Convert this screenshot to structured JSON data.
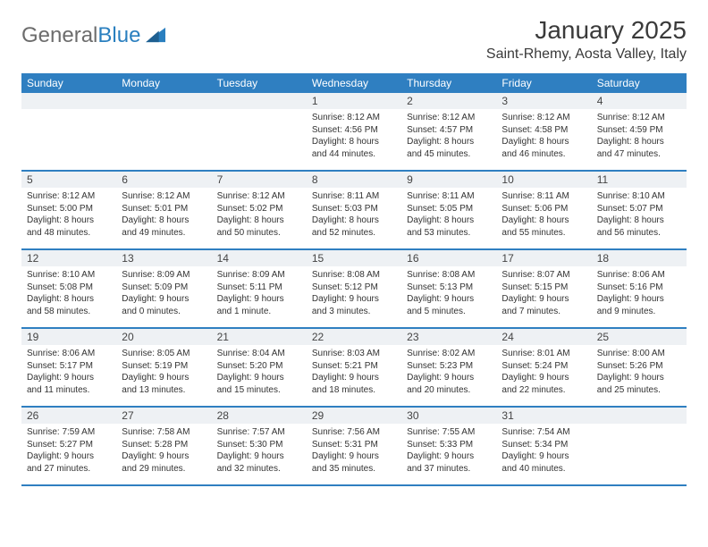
{
  "logo": {
    "text_part1": "General",
    "text_part2": "Blue",
    "icon_color": "#2a7fbf",
    "text_color_gray": "#6c6c6c"
  },
  "header": {
    "month_title": "January 2025",
    "location": "Saint-Rhemy, Aosta Valley, Italy"
  },
  "colors": {
    "header_bg": "#2f7fc1",
    "header_text": "#ffffff",
    "daynum_bg": "#eef1f4",
    "border": "#2f7fc1",
    "body_text": "#333333"
  },
  "day_labels": [
    "Sunday",
    "Monday",
    "Tuesday",
    "Wednesday",
    "Thursday",
    "Friday",
    "Saturday"
  ],
  "weeks": [
    [
      {
        "empty": true
      },
      {
        "empty": true
      },
      {
        "empty": true
      },
      {
        "day": "1",
        "sunrise": "Sunrise: 8:12 AM",
        "sunset": "Sunset: 4:56 PM",
        "daylight1": "Daylight: 8 hours",
        "daylight2": "and 44 minutes."
      },
      {
        "day": "2",
        "sunrise": "Sunrise: 8:12 AM",
        "sunset": "Sunset: 4:57 PM",
        "daylight1": "Daylight: 8 hours",
        "daylight2": "and 45 minutes."
      },
      {
        "day": "3",
        "sunrise": "Sunrise: 8:12 AM",
        "sunset": "Sunset: 4:58 PM",
        "daylight1": "Daylight: 8 hours",
        "daylight2": "and 46 minutes."
      },
      {
        "day": "4",
        "sunrise": "Sunrise: 8:12 AM",
        "sunset": "Sunset: 4:59 PM",
        "daylight1": "Daylight: 8 hours",
        "daylight2": "and 47 minutes."
      }
    ],
    [
      {
        "day": "5",
        "sunrise": "Sunrise: 8:12 AM",
        "sunset": "Sunset: 5:00 PM",
        "daylight1": "Daylight: 8 hours",
        "daylight2": "and 48 minutes."
      },
      {
        "day": "6",
        "sunrise": "Sunrise: 8:12 AM",
        "sunset": "Sunset: 5:01 PM",
        "daylight1": "Daylight: 8 hours",
        "daylight2": "and 49 minutes."
      },
      {
        "day": "7",
        "sunrise": "Sunrise: 8:12 AM",
        "sunset": "Sunset: 5:02 PM",
        "daylight1": "Daylight: 8 hours",
        "daylight2": "and 50 minutes."
      },
      {
        "day": "8",
        "sunrise": "Sunrise: 8:11 AM",
        "sunset": "Sunset: 5:03 PM",
        "daylight1": "Daylight: 8 hours",
        "daylight2": "and 52 minutes."
      },
      {
        "day": "9",
        "sunrise": "Sunrise: 8:11 AM",
        "sunset": "Sunset: 5:05 PM",
        "daylight1": "Daylight: 8 hours",
        "daylight2": "and 53 minutes."
      },
      {
        "day": "10",
        "sunrise": "Sunrise: 8:11 AM",
        "sunset": "Sunset: 5:06 PM",
        "daylight1": "Daylight: 8 hours",
        "daylight2": "and 55 minutes."
      },
      {
        "day": "11",
        "sunrise": "Sunrise: 8:10 AM",
        "sunset": "Sunset: 5:07 PM",
        "daylight1": "Daylight: 8 hours",
        "daylight2": "and 56 minutes."
      }
    ],
    [
      {
        "day": "12",
        "sunrise": "Sunrise: 8:10 AM",
        "sunset": "Sunset: 5:08 PM",
        "daylight1": "Daylight: 8 hours",
        "daylight2": "and 58 minutes."
      },
      {
        "day": "13",
        "sunrise": "Sunrise: 8:09 AM",
        "sunset": "Sunset: 5:09 PM",
        "daylight1": "Daylight: 9 hours",
        "daylight2": "and 0 minutes."
      },
      {
        "day": "14",
        "sunrise": "Sunrise: 8:09 AM",
        "sunset": "Sunset: 5:11 PM",
        "daylight1": "Daylight: 9 hours",
        "daylight2": "and 1 minute."
      },
      {
        "day": "15",
        "sunrise": "Sunrise: 8:08 AM",
        "sunset": "Sunset: 5:12 PM",
        "daylight1": "Daylight: 9 hours",
        "daylight2": "and 3 minutes."
      },
      {
        "day": "16",
        "sunrise": "Sunrise: 8:08 AM",
        "sunset": "Sunset: 5:13 PM",
        "daylight1": "Daylight: 9 hours",
        "daylight2": "and 5 minutes."
      },
      {
        "day": "17",
        "sunrise": "Sunrise: 8:07 AM",
        "sunset": "Sunset: 5:15 PM",
        "daylight1": "Daylight: 9 hours",
        "daylight2": "and 7 minutes."
      },
      {
        "day": "18",
        "sunrise": "Sunrise: 8:06 AM",
        "sunset": "Sunset: 5:16 PM",
        "daylight1": "Daylight: 9 hours",
        "daylight2": "and 9 minutes."
      }
    ],
    [
      {
        "day": "19",
        "sunrise": "Sunrise: 8:06 AM",
        "sunset": "Sunset: 5:17 PM",
        "daylight1": "Daylight: 9 hours",
        "daylight2": "and 11 minutes."
      },
      {
        "day": "20",
        "sunrise": "Sunrise: 8:05 AM",
        "sunset": "Sunset: 5:19 PM",
        "daylight1": "Daylight: 9 hours",
        "daylight2": "and 13 minutes."
      },
      {
        "day": "21",
        "sunrise": "Sunrise: 8:04 AM",
        "sunset": "Sunset: 5:20 PM",
        "daylight1": "Daylight: 9 hours",
        "daylight2": "and 15 minutes."
      },
      {
        "day": "22",
        "sunrise": "Sunrise: 8:03 AM",
        "sunset": "Sunset: 5:21 PM",
        "daylight1": "Daylight: 9 hours",
        "daylight2": "and 18 minutes."
      },
      {
        "day": "23",
        "sunrise": "Sunrise: 8:02 AM",
        "sunset": "Sunset: 5:23 PM",
        "daylight1": "Daylight: 9 hours",
        "daylight2": "and 20 minutes."
      },
      {
        "day": "24",
        "sunrise": "Sunrise: 8:01 AM",
        "sunset": "Sunset: 5:24 PM",
        "daylight1": "Daylight: 9 hours",
        "daylight2": "and 22 minutes."
      },
      {
        "day": "25",
        "sunrise": "Sunrise: 8:00 AM",
        "sunset": "Sunset: 5:26 PM",
        "daylight1": "Daylight: 9 hours",
        "daylight2": "and 25 minutes."
      }
    ],
    [
      {
        "day": "26",
        "sunrise": "Sunrise: 7:59 AM",
        "sunset": "Sunset: 5:27 PM",
        "daylight1": "Daylight: 9 hours",
        "daylight2": "and 27 minutes."
      },
      {
        "day": "27",
        "sunrise": "Sunrise: 7:58 AM",
        "sunset": "Sunset: 5:28 PM",
        "daylight1": "Daylight: 9 hours",
        "daylight2": "and 29 minutes."
      },
      {
        "day": "28",
        "sunrise": "Sunrise: 7:57 AM",
        "sunset": "Sunset: 5:30 PM",
        "daylight1": "Daylight: 9 hours",
        "daylight2": "and 32 minutes."
      },
      {
        "day": "29",
        "sunrise": "Sunrise: 7:56 AM",
        "sunset": "Sunset: 5:31 PM",
        "daylight1": "Daylight: 9 hours",
        "daylight2": "and 35 minutes."
      },
      {
        "day": "30",
        "sunrise": "Sunrise: 7:55 AM",
        "sunset": "Sunset: 5:33 PM",
        "daylight1": "Daylight: 9 hours",
        "daylight2": "and 37 minutes."
      },
      {
        "day": "31",
        "sunrise": "Sunrise: 7:54 AM",
        "sunset": "Sunset: 5:34 PM",
        "daylight1": "Daylight: 9 hours",
        "daylight2": "and 40 minutes."
      },
      {
        "empty": true
      }
    ]
  ]
}
